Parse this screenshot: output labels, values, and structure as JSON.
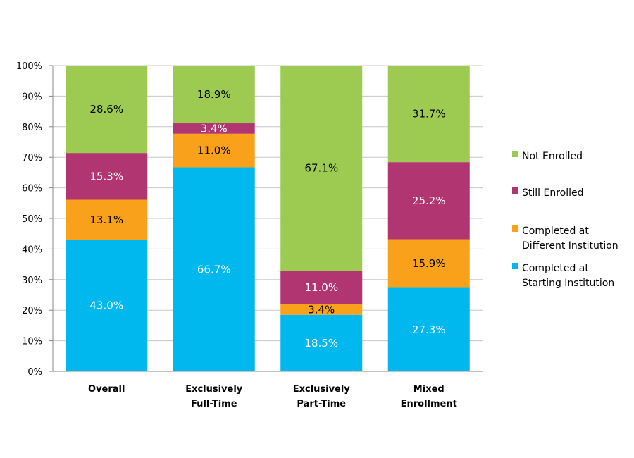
{
  "chart_data": {
    "type": "bar",
    "stacked": true,
    "percent_stacked": true,
    "categories": [
      [
        "Overall"
      ],
      [
        "Exclusively",
        "Full-Time"
      ],
      [
        "Exclusively",
        "Part-Time"
      ],
      [
        "Mixed",
        "Enrollment"
      ]
    ],
    "series": [
      {
        "name": "Completed at Starting Institution",
        "name_lines": [
          "Completed at",
          "Starting Institution"
        ],
        "color": "#00B8EE",
        "values": [
          43.0,
          66.7,
          18.5,
          27.3
        ],
        "label_color": "#ffffff"
      },
      {
        "name": "Completed at Different Institution",
        "name_lines": [
          "Completed at",
          "Different Institution"
        ],
        "color": "#F9A11B",
        "values": [
          13.1,
          11.0,
          3.4,
          15.9
        ],
        "label_color": "#000000"
      },
      {
        "name": "Still Enrolled",
        "name_lines": [
          "Still Enrolled"
        ],
        "color": "#B03571",
        "values": [
          15.3,
          3.4,
          11.0,
          25.2
        ],
        "label_color": "#ffffff"
      },
      {
        "name": "Not Enrolled",
        "name_lines": [
          "Not Enrolled"
        ],
        "color": "#9DCB51",
        "values": [
          28.6,
          18.9,
          67.1,
          31.7
        ],
        "label_color": "#000000"
      }
    ],
    "data_labels": [
      [
        "43.0%",
        "66.7%",
        "18.5%",
        "27.3%"
      ],
      [
        "13.1%",
        "11.0%",
        "3.4%",
        "15.9%"
      ],
      [
        "15.3%",
        "3.4%",
        "11.0%",
        "25.2%"
      ],
      [
        "28.6%",
        "18.9%",
        "67.1%",
        "31.7%"
      ]
    ],
    "yticks": [
      "0%",
      "10%",
      "20%",
      "30%",
      "40%",
      "50%",
      "60%",
      "70%",
      "80%",
      "90%",
      "100%"
    ],
    "ylim": [
      0,
      100
    ],
    "grid": true,
    "legend_placement": "right",
    "legend_order": [
      3,
      2,
      1,
      0
    ]
  }
}
